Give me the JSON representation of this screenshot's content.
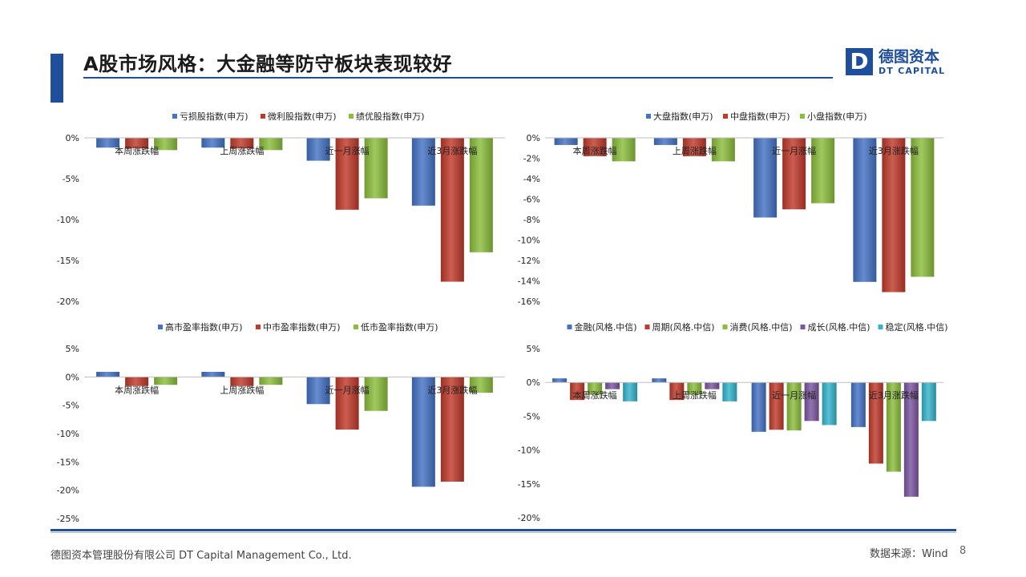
{
  "header": {
    "title": "A股市场风格：大金融等防守板块表现较好"
  },
  "logo": {
    "mark": "D",
    "cn": "德图资本",
    "en": "DT CAPITAL"
  },
  "footer": {
    "company": "德图资本管理股份有限公司  DT Capital  Management  Co., Ltd.",
    "source": "数据来源：Wind",
    "page": "8"
  },
  "colors": {
    "blue": "#4472c4",
    "red": "#c0392b",
    "green": "#8bbd3c",
    "purple": "#7b559f",
    "teal": "#34b3cc"
  },
  "chart_data": [
    {
      "type": "bar",
      "categories": [
        "本周涨跌幅",
        "上周涨跌幅",
        "近一月涨幅",
        "近3月涨跌幅"
      ],
      "series": [
        {
          "name": "亏损股指数(申万)",
          "color": "#4472c4",
          "values": [
            -1.2,
            -1.2,
            -2.8,
            -8.3
          ]
        },
        {
          "name": "微利股指数(申万)",
          "color": "#c0392b",
          "values": [
            -1.3,
            -1.3,
            -8.8,
            -17.6
          ]
        },
        {
          "name": "绩优股指数(申万)",
          "color": "#8bbd3c",
          "values": [
            -1.5,
            -1.5,
            -7.4,
            -14.0
          ]
        }
      ],
      "ylim": [
        -20,
        0
      ],
      "ticks": [
        0,
        -5,
        -10,
        -15,
        -20
      ],
      "tick_labels": [
        "0%",
        "-5%",
        "-10%",
        "-15%",
        "-20%"
      ],
      "legend": "top",
      "grid": false
    },
    {
      "type": "bar",
      "categories": [
        "本周涨跌幅",
        "上周涨跌幅",
        "近一月涨幅",
        "近3月涨跌幅"
      ],
      "series": [
        {
          "name": "大盘指数(申万)",
          "color": "#4472c4",
          "values": [
            -0.7,
            -0.7,
            -7.8,
            -14.1
          ]
        },
        {
          "name": "中盘指数(申万)",
          "color": "#c0392b",
          "values": [
            -1.8,
            -1.8,
            -7.0,
            -15.1
          ]
        },
        {
          "name": "小盘指数(申万)",
          "color": "#8bbd3c",
          "values": [
            -2.3,
            -2.3,
            -6.4,
            -13.6
          ]
        }
      ],
      "ylim": [
        -16,
        0
      ],
      "ticks": [
        0,
        -2,
        -4,
        -6,
        -8,
        -10,
        -12,
        -14,
        -16
      ],
      "tick_labels": [
        "0%",
        "-2%",
        "-4%",
        "-6%",
        "-8%",
        "-10%",
        "-12%",
        "-14%",
        "-16%"
      ],
      "legend": "top",
      "grid": false
    },
    {
      "type": "bar",
      "categories": [
        "本周涨跌幅",
        "上周涨跌幅",
        "近一月涨幅",
        "近3月涨跌幅"
      ],
      "series": [
        {
          "name": "高市盈率指数(申万)",
          "color": "#4472c4",
          "values": [
            0.9,
            0.9,
            -4.8,
            -19.4
          ]
        },
        {
          "name": "中市盈率指数(申万)",
          "color": "#c0392b",
          "values": [
            -1.6,
            -1.6,
            -9.3,
            -18.5
          ]
        },
        {
          "name": "低市盈率指数(申万)",
          "color": "#8bbd3c",
          "values": [
            -1.4,
            -1.4,
            -6.0,
            -2.8
          ]
        }
      ],
      "ylim": [
        -25,
        5
      ],
      "ticks": [
        5,
        0,
        -5,
        -10,
        -15,
        -20,
        -25
      ],
      "tick_labels": [
        "5%",
        "0%",
        "-5%",
        "-10%",
        "-15%",
        "-20%",
        "-25%"
      ],
      "legend": "top",
      "grid": false
    },
    {
      "type": "bar",
      "categories": [
        "本周涨跌幅",
        "上周涨跌幅",
        "近一月涨幅",
        "近3月涨跌幅"
      ],
      "series": [
        {
          "name": "金融(风格.中信)",
          "color": "#4472c4",
          "values": [
            0.6,
            0.6,
            -7.3,
            -6.6
          ]
        },
        {
          "name": "周期(风格.中信)",
          "color": "#c0392b",
          "values": [
            -2.6,
            -2.6,
            -7.0,
            -12.0
          ]
        },
        {
          "name": "消费(风格.中信)",
          "color": "#8bbd3c",
          "values": [
            -1.8,
            -1.8,
            -7.1,
            -13.2
          ]
        },
        {
          "name": "成长(风格.中信)",
          "color": "#7b559f",
          "values": [
            -1.0,
            -1.0,
            -5.7,
            -16.9
          ]
        },
        {
          "name": "稳定(风格.中信)",
          "color": "#34b3cc",
          "values": [
            -2.8,
            -2.8,
            -6.3,
            -5.7
          ]
        }
      ],
      "ylim": [
        -20,
        5
      ],
      "ticks": [
        5,
        0,
        -5,
        -10,
        -15,
        -20
      ],
      "tick_labels": [
        "5%",
        "0%",
        "-5%",
        "-10%",
        "-15%",
        "-20%"
      ],
      "legend": "top",
      "grid": false
    }
  ]
}
